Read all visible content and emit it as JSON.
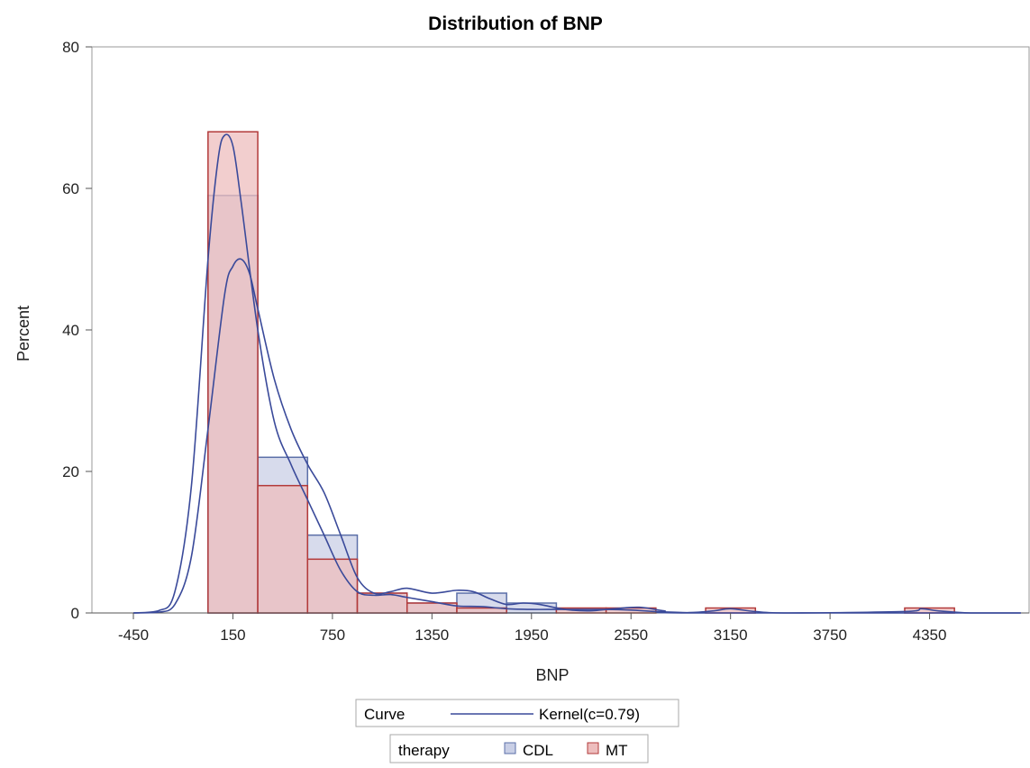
{
  "chart_data": {
    "type": "histogram",
    "title": "Distribution of BNP",
    "xlabel": "BNP",
    "ylabel": "Percent",
    "xlim": [
      -700,
      4950
    ],
    "ylim": [
      0,
      80
    ],
    "x_ticks": [
      -450,
      150,
      750,
      1350,
      1950,
      2550,
      3150,
      3750,
      4350
    ],
    "y_ticks": [
      0,
      20,
      40,
      60,
      80
    ],
    "bin_width": 300,
    "bin_lefts": [
      0,
      300,
      600,
      900,
      1200,
      1500,
      1800,
      2100,
      2400,
      3000,
      4200
    ],
    "series": [
      {
        "name": "CDL",
        "color": "#5B6FA8",
        "fill": "#C9CFE6",
        "values": [
          59,
          22,
          11,
          2.8,
          1.4,
          2.8,
          1.4,
          0,
          0,
          0,
          0
        ]
      },
      {
        "name": "MT",
        "color": "#B23A3A",
        "fill": "#EDBDBD",
        "values": [
          68,
          18,
          7.6,
          2.8,
          1.4,
          0.7,
          0,
          0.7,
          0.7,
          0.7,
          0.7
        ]
      }
    ],
    "kernel_curves": [
      {
        "group": "MT",
        "color": "#3A4A9A",
        "points": [
          [
            -450,
            0
          ],
          [
            -300,
            0.3
          ],
          [
            -200,
            3
          ],
          [
            -100,
            18
          ],
          [
            0,
            50
          ],
          [
            60,
            64
          ],
          [
            100,
            67.5
          ],
          [
            150,
            66
          ],
          [
            200,
            58
          ],
          [
            300,
            40
          ],
          [
            400,
            27
          ],
          [
            500,
            21
          ],
          [
            600,
            16
          ],
          [
            700,
            11
          ],
          [
            800,
            6
          ],
          [
            900,
            3
          ],
          [
            1000,
            2.5
          ],
          [
            1100,
            2.6
          ],
          [
            1200,
            2.2
          ],
          [
            1350,
            1.6
          ],
          [
            1500,
            1
          ],
          [
            1650,
            0.9
          ],
          [
            1800,
            0.6
          ],
          [
            1950,
            0.5
          ],
          [
            2100,
            0.5
          ],
          [
            2250,
            0.5
          ],
          [
            2400,
            0.5
          ],
          [
            2550,
            0.4
          ],
          [
            2700,
            0.2
          ],
          [
            2900,
            0.05
          ],
          [
            3050,
            0.3
          ],
          [
            3150,
            0.6
          ],
          [
            3300,
            0.2
          ],
          [
            3500,
            0
          ],
          [
            4200,
            0.2
          ],
          [
            4300,
            0.6
          ],
          [
            4400,
            0.3
          ],
          [
            4600,
            0
          ],
          [
            4900,
            0
          ]
        ]
      },
      {
        "group": "CDL",
        "color": "#3A4A9A",
        "points": [
          [
            -450,
            0
          ],
          [
            -300,
            0.1
          ],
          [
            -200,
            1.2
          ],
          [
            -100,
            8
          ],
          [
            0,
            26
          ],
          [
            100,
            45
          ],
          [
            150,
            49
          ],
          [
            200,
            50
          ],
          [
            250,
            48
          ],
          [
            300,
            43
          ],
          [
            400,
            33
          ],
          [
            500,
            26
          ],
          [
            600,
            21
          ],
          [
            700,
            17
          ],
          [
            800,
            11
          ],
          [
            900,
            5
          ],
          [
            1000,
            2.8
          ],
          [
            1100,
            3
          ],
          [
            1200,
            3.5
          ],
          [
            1350,
            2.8
          ],
          [
            1500,
            3.2
          ],
          [
            1600,
            3
          ],
          [
            1700,
            2
          ],
          [
            1800,
            1.2
          ],
          [
            1900,
            1.4
          ],
          [
            2000,
            1.2
          ],
          [
            2150,
            0.5
          ],
          [
            2300,
            0.3
          ],
          [
            2450,
            0.6
          ],
          [
            2600,
            0.8
          ],
          [
            2750,
            0.3
          ],
          [
            2900,
            0
          ],
          [
            4900,
            0
          ]
        ]
      }
    ]
  },
  "legend_curve": {
    "title": "Curve",
    "entry": "Kernel(c=0.79)"
  },
  "legend_group": {
    "title": "therapy",
    "entries": [
      "CDL",
      "MT"
    ]
  }
}
